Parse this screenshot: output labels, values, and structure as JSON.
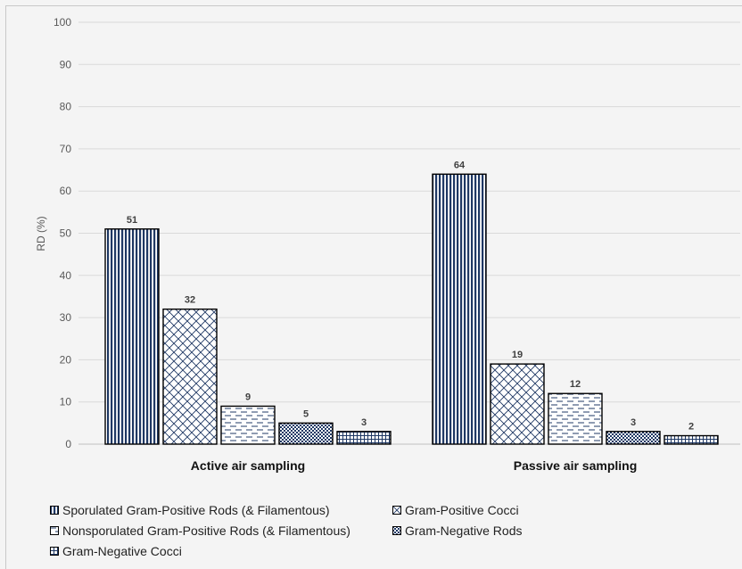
{
  "chart_data": {
    "type": "bar",
    "categories": [
      "Active air sampling",
      "Passive air sampling"
    ],
    "series": [
      {
        "name": "Sporulated Gram-Positive Rods (& Filamentous)",
        "values": [
          51,
          64
        ],
        "pattern": "vertical"
      },
      {
        "name": "Gram-Positive Cocci",
        "values": [
          32,
          19
        ],
        "pattern": "diamond"
      },
      {
        "name": "Nonsporulated Gram-Positive Rods (& Filamentous)",
        "values": [
          9,
          12
        ],
        "pattern": "dashed-horizontal"
      },
      {
        "name": "Gram-Negative Rods",
        "values": [
          5,
          3
        ],
        "pattern": "dots"
      },
      {
        "name": "Gram-Negative Cocci",
        "values": [
          3,
          2
        ],
        "pattern": "grid"
      }
    ],
    "ylabel": "RD (%)",
    "xlabel": "",
    "ylim": [
      0,
      100
    ],
    "yticks": [
      0,
      10,
      20,
      30,
      40,
      50,
      60,
      70,
      80,
      90,
      100
    ],
    "grid": true,
    "legend_position": "bottom",
    "colors": {
      "pattern": "#1f3864",
      "bar_border": "#000000",
      "grid": "#d9d9d9",
      "tick_text": "#595959",
      "label_text": "#404040"
    }
  }
}
